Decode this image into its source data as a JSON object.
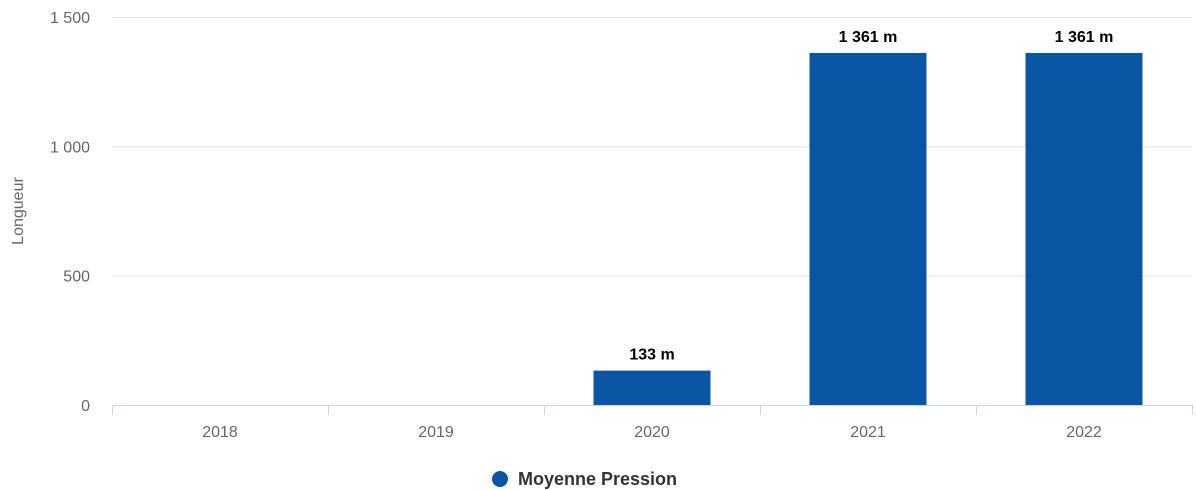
{
  "chart_data": {
    "type": "bar",
    "title": "",
    "xlabel": "",
    "ylabel": "Longueur",
    "categories": [
      "2018",
      "2019",
      "2020",
      "2021",
      "2022"
    ],
    "series": [
      {
        "name": "Moyenne Pression",
        "color": "#0a55a4",
        "values": [
          0,
          0,
          133,
          1361,
          1361
        ],
        "data_labels": [
          "",
          "",
          "133 m",
          "1 361 m",
          "1 361 m"
        ]
      }
    ],
    "ylim": [
      0,
      1500
    ],
    "yticks": [
      0,
      500,
      1000,
      1500
    ],
    "ytick_labels": [
      "0",
      "500",
      "1 000",
      "1 500"
    ],
    "grid": true,
    "legend": "bottom-center"
  }
}
